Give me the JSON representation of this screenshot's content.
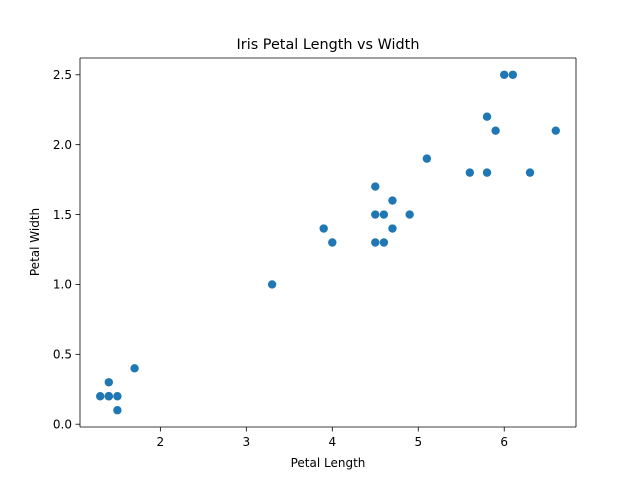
{
  "chart_data": {
    "type": "scatter",
    "title": "Iris Petal Length vs Width",
    "xlabel": "Petal Length",
    "ylabel": "Petal Width",
    "xlim": [
      1.065,
      6.835
    ],
    "ylim": [
      -0.02,
      2.62
    ],
    "x_ticks": [
      2,
      3,
      4,
      5,
      6
    ],
    "y_ticks": [
      0.0,
      0.5,
      1.0,
      1.5,
      2.0,
      2.5
    ],
    "grid": false,
    "marker_color": "#1f77b4",
    "points": [
      {
        "x": 1.3,
        "y": 0.2
      },
      {
        "x": 1.4,
        "y": 0.2
      },
      {
        "x": 1.4,
        "y": 0.3
      },
      {
        "x": 1.4,
        "y": 0.2
      },
      {
        "x": 1.5,
        "y": 0.2
      },
      {
        "x": 1.5,
        "y": 0.1
      },
      {
        "x": 1.7,
        "y": 0.4
      },
      {
        "x": 3.3,
        "y": 1.0
      },
      {
        "x": 3.9,
        "y": 1.4
      },
      {
        "x": 4.0,
        "y": 1.3
      },
      {
        "x": 4.5,
        "y": 1.7
      },
      {
        "x": 4.5,
        "y": 1.5
      },
      {
        "x": 4.5,
        "y": 1.3
      },
      {
        "x": 4.6,
        "y": 1.5
      },
      {
        "x": 4.6,
        "y": 1.3
      },
      {
        "x": 4.7,
        "y": 1.6
      },
      {
        "x": 4.7,
        "y": 1.4
      },
      {
        "x": 4.9,
        "y": 1.5
      },
      {
        "x": 5.1,
        "y": 1.9
      },
      {
        "x": 5.6,
        "y": 1.8
      },
      {
        "x": 5.8,
        "y": 2.2
      },
      {
        "x": 5.8,
        "y": 1.8
      },
      {
        "x": 5.9,
        "y": 2.1
      },
      {
        "x": 6.0,
        "y": 2.5
      },
      {
        "x": 6.1,
        "y": 2.5
      },
      {
        "x": 6.3,
        "y": 1.8
      },
      {
        "x": 6.6,
        "y": 2.1
      }
    ]
  }
}
